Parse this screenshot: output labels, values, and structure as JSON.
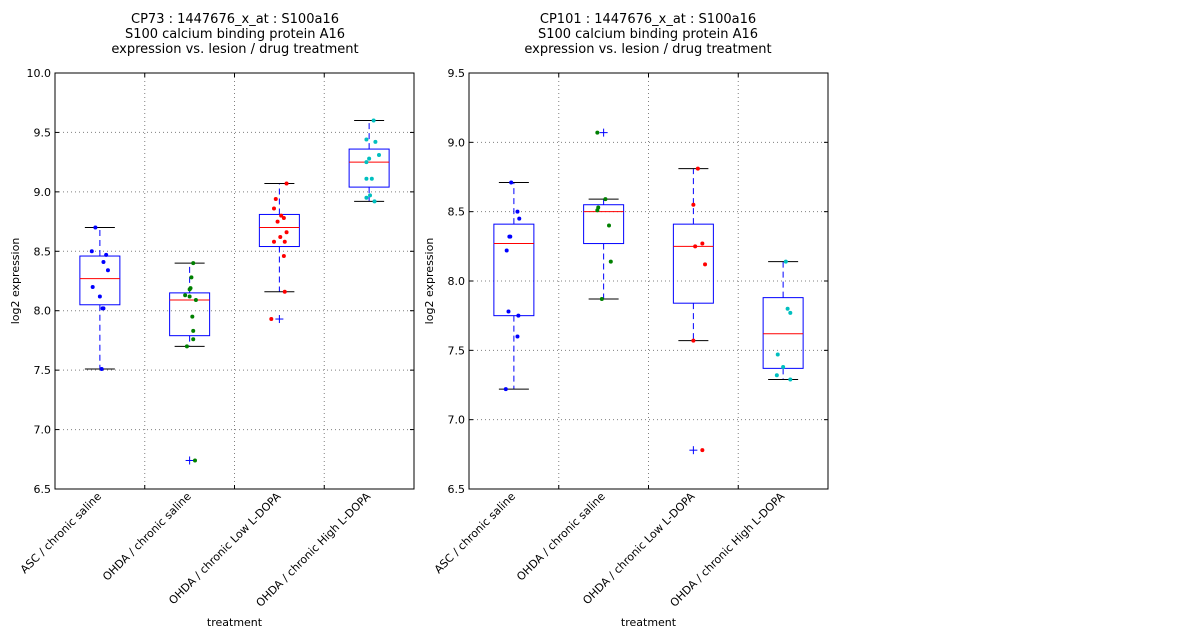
{
  "chart_data": [
    {
      "type": "box",
      "title_lines": [
        "CP73 : 1447676_x_at : S100a16",
        "S100 calcium binding protein A16",
        "expression vs. lesion / drug treatment"
      ],
      "xlabel": "treatment",
      "ylabel": "log2 expression",
      "ylim": [
        6.5,
        10.0
      ],
      "yticks": [
        "6.5",
        "7.0",
        "7.5",
        "8.0",
        "8.5",
        "9.0",
        "9.5",
        "10.0"
      ],
      "grid": true,
      "categories": [
        "ASC / chronic saline",
        "OHDA / chronic saline",
        "OHDA / chronic Low L-DOPA",
        "OHDA / chronic High L-DOPA"
      ],
      "point_colors": [
        "#0000ff",
        "#008000",
        "#ff0000",
        "#00bfbf"
      ],
      "boxes": [
        {
          "whisker_low": 7.51,
          "q1": 8.05,
          "median": 8.27,
          "q3": 8.46,
          "whisker_high": 8.7,
          "outliers": []
        },
        {
          "whisker_low": 7.7,
          "q1": 7.79,
          "median": 8.09,
          "q3": 8.15,
          "whisker_high": 8.4,
          "outliers": [
            6.74
          ]
        },
        {
          "whisker_low": 8.16,
          "q1": 8.54,
          "median": 8.7,
          "q3": 8.81,
          "whisker_high": 9.07,
          "outliers": [
            7.93
          ]
        },
        {
          "whisker_low": 8.92,
          "q1": 9.04,
          "median": 9.25,
          "q3": 9.36,
          "whisker_high": 9.6,
          "outliers": []
        }
      ],
      "points": [
        [
          8.7,
          8.5,
          8.47,
          8.41,
          8.34,
          8.2,
          8.12,
          8.02,
          8.02,
          7.51
        ],
        [
          8.4,
          8.28,
          8.19,
          8.18,
          8.13,
          8.12,
          8.09,
          7.95,
          7.83,
          7.76,
          7.7,
          6.74
        ],
        [
          9.07,
          8.94,
          8.86,
          8.8,
          8.78,
          8.75,
          8.66,
          8.62,
          8.58,
          8.58,
          8.46,
          8.16,
          7.93
        ],
        [
          9.6,
          9.44,
          9.42,
          9.31,
          9.28,
          9.25,
          9.11,
          9.11,
          8.97,
          8.95,
          8.92
        ]
      ],
      "jitter": [
        [
          -0.05,
          -0.09,
          0.07,
          0.04,
          0.09,
          -0.08,
          0.0,
          0.04,
          0.03,
          0.02
        ],
        [
          0.04,
          0.02,
          0.01,
          0.0,
          -0.05,
          0.0,
          0.07,
          0.03,
          0.04,
          0.04,
          -0.03,
          0.06
        ],
        [
          0.08,
          -0.04,
          -0.06,
          0.02,
          0.05,
          -0.02,
          0.08,
          0.01,
          0.06,
          -0.06,
          0.05,
          0.06,
          -0.09
        ],
        [
          0.05,
          -0.03,
          0.07,
          0.11,
          0.0,
          -0.03,
          -0.03,
          0.03,
          0.01,
          -0.03,
          0.06
        ]
      ]
    },
    {
      "type": "box",
      "title_lines": [
        "CP101 : 1447676_x_at : S100a16",
        "S100 calcium binding protein A16",
        "expression vs. lesion / drug treatment"
      ],
      "xlabel": "treatment",
      "ylabel": "log2 expression",
      "ylim": [
        6.5,
        9.5
      ],
      "yticks": [
        "6.5",
        "7.0",
        "7.5",
        "8.0",
        "8.5",
        "9.0",
        "9.5"
      ],
      "grid": true,
      "categories": [
        "ASC / chronic saline",
        "OHDA / chronic saline",
        "OHDA / chronic Low L-DOPA",
        "OHDA / chronic High L-DOPA"
      ],
      "point_colors": [
        "#0000ff",
        "#008000",
        "#ff0000",
        "#00bfbf"
      ],
      "boxes": [
        {
          "whisker_low": 7.22,
          "q1": 7.75,
          "median": 8.27,
          "q3": 8.41,
          "whisker_high": 8.71,
          "outliers": []
        },
        {
          "whisker_low": 7.87,
          "q1": 8.27,
          "median": 8.5,
          "q3": 8.55,
          "whisker_high": 8.59,
          "outliers": [
            9.07
          ]
        },
        {
          "whisker_low": 7.57,
          "q1": 7.84,
          "median": 8.25,
          "q3": 8.41,
          "whisker_high": 8.81,
          "outliers": [
            6.78
          ]
        },
        {
          "whisker_low": 7.29,
          "q1": 7.37,
          "median": 7.62,
          "q3": 7.88,
          "whisker_high": 8.14,
          "outliers": []
        }
      ],
      "points": [
        [
          8.71,
          8.5,
          8.45,
          8.32,
          8.32,
          8.22,
          7.78,
          7.75,
          7.6,
          7.22
        ],
        [
          9.07,
          8.59,
          8.53,
          8.51,
          8.4,
          8.14,
          7.87
        ],
        [
          8.81,
          8.55,
          8.27,
          8.25,
          8.12,
          7.57,
          6.78
        ],
        [
          8.14,
          7.8,
          7.77,
          7.47,
          7.38,
          7.32,
          7.29
        ]
      ],
      "jitter": [
        [
          -0.03,
          0.04,
          0.06,
          -0.04,
          -0.05,
          -0.08,
          -0.06,
          0.05,
          0.04,
          -0.09
        ],
        [
          -0.07,
          0.02,
          -0.06,
          -0.07,
          0.06,
          0.08,
          -0.02
        ],
        [
          0.05,
          0.0,
          0.1,
          0.02,
          0.13,
          0.0,
          0.1
        ],
        [
          0.03,
          0.05,
          0.08,
          -0.06,
          0.0,
          -0.07,
          0.08
        ]
      ]
    }
  ]
}
